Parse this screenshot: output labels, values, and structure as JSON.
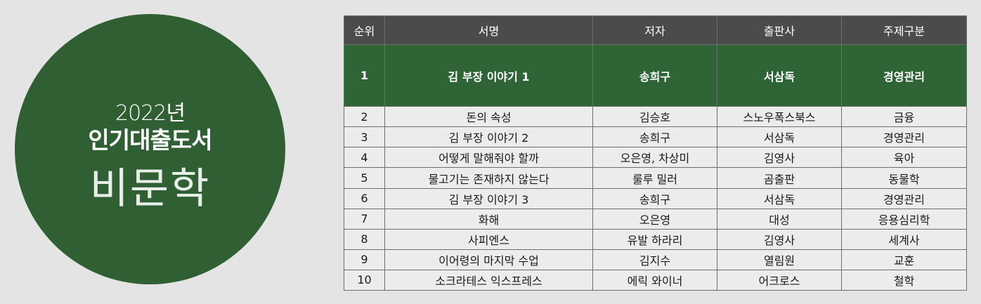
{
  "badge": {
    "year": "2022년",
    "title": "인기대출도서",
    "category": "비문학"
  },
  "table": {
    "headers": [
      "순위",
      "서명",
      "저자",
      "출판사",
      "주제구분"
    ],
    "rows": [
      [
        "1",
        "김 부장 이야기 1",
        "송희구",
        "서삼독",
        "경영관리"
      ],
      [
        "2",
        "돈의 속성",
        "김승호",
        "스노우폭스북스",
        "금융"
      ],
      [
        "3",
        "김 부장 이야기 2",
        "송희구",
        "서삼독",
        "경영관리"
      ],
      [
        "4",
        "어떻게 말해줘야 할까",
        "오은영, 차상미",
        "김영사",
        "육아"
      ],
      [
        "5",
        "물고기는 존재하지 않는다",
        "룰루 밀러",
        "곰출판",
        "동물학"
      ],
      [
        "6",
        "김 부장 이야기 3",
        "송희구",
        "서삼독",
        "경영관리"
      ],
      [
        "7",
        "화해",
        "오은영",
        "대성",
        "응용심리학"
      ],
      [
        "8",
        "사피엔스",
        "유발 하라리",
        "김영사",
        "세계사"
      ],
      [
        "9",
        "이어령의 마지막 수업",
        "김지수",
        "열림원",
        "교훈"
      ],
      [
        "10",
        "소크라테스 익스프레스",
        "에릭 와이너",
        "어크로스",
        "철학"
      ]
    ]
  }
}
